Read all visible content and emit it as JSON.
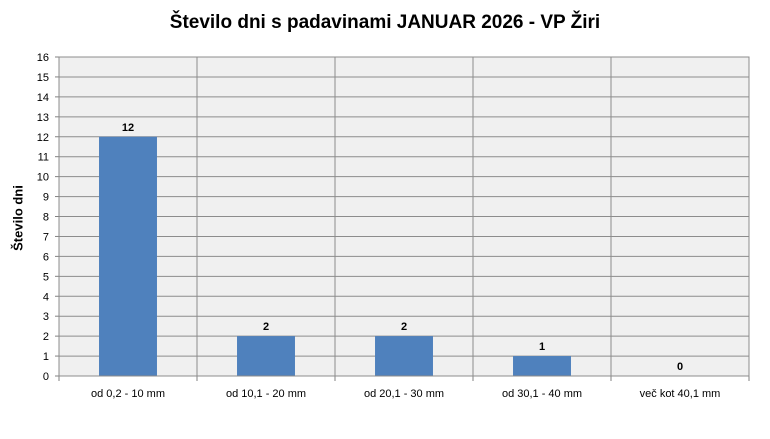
{
  "chart_data": {
    "type": "bar",
    "title": "Število dni s padavinami  JANUAR 2026 - VP Žiri",
    "xlabel": "",
    "ylabel": "Število dni",
    "categories": [
      "od 0,2 - 10 mm",
      "od 10,1 - 20 mm",
      "od 20,1 - 30 mm",
      "od 30,1 - 40 mm",
      "več kot 40,1 mm"
    ],
    "values": [
      12,
      2,
      2,
      1,
      0
    ],
    "ylim": [
      0,
      16
    ],
    "yticks": [
      0,
      1,
      2,
      3,
      4,
      5,
      6,
      7,
      8,
      9,
      10,
      11,
      12,
      13,
      14,
      15,
      16
    ],
    "grid": true,
    "data_labels": true,
    "bar_color": "#4f81bd",
    "plot_background": "#f0f0f0"
  }
}
